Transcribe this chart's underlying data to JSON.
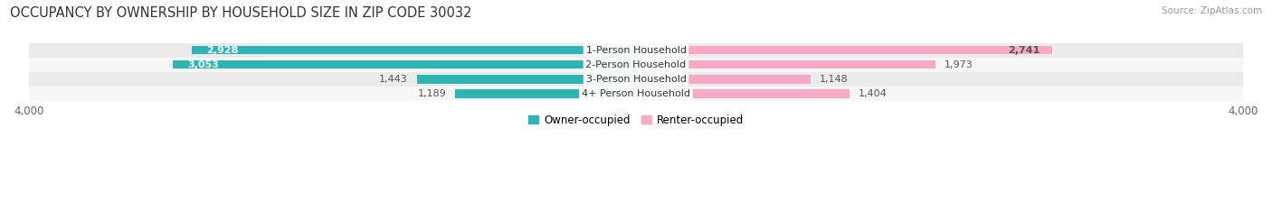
{
  "title": "OCCUPANCY BY OWNERSHIP BY HOUSEHOLD SIZE IN ZIP CODE 30032",
  "source": "Source: ZipAtlas.com",
  "categories": [
    "1-Person Household",
    "2-Person Household",
    "3-Person Household",
    "4+ Person Household"
  ],
  "owner_values": [
    2928,
    3053,
    1443,
    1189
  ],
  "renter_values": [
    2741,
    1973,
    1148,
    1404
  ],
  "owner_color": "#2db5b5",
  "renter_color": "#f7a8c4",
  "row_bg_colors": [
    "#ebebeb",
    "#f7f7f7",
    "#ebebeb",
    "#f7f7f7"
  ],
  "x_max": 4000,
  "legend_owner": "Owner-occupied",
  "legend_renter": "Renter-occupied",
  "title_fontsize": 10.5,
  "source_fontsize": 7.5,
  "label_fontsize": 8,
  "category_fontsize": 8,
  "bar_height": 0.58,
  "figsize": [
    14.06,
    2.33
  ],
  "dpi": 100,
  "owner_label_color_large": "#ffffff",
  "owner_label_color_small": "#555555",
  "renter_label_color": "#555555",
  "large_threshold": 2000
}
